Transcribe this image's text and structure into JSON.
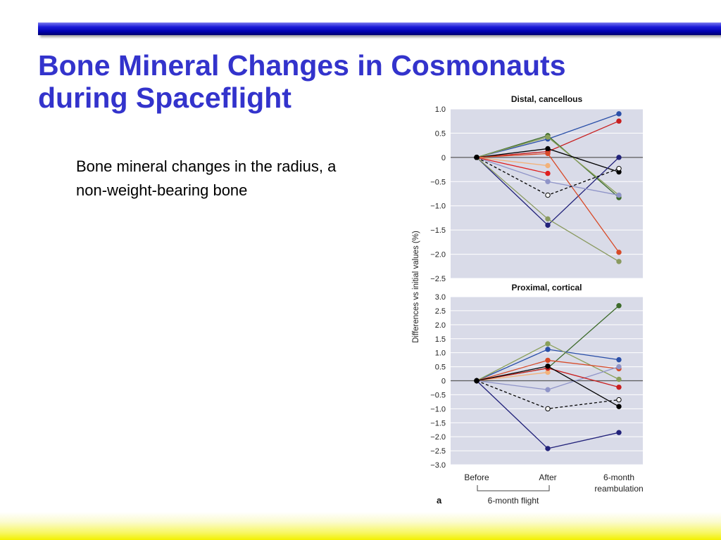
{
  "slide": {
    "title_line1": "Bone Mineral Changes in Cosmonauts",
    "title_line2": "during Spaceflight",
    "body": "Bone mineral changes in the radius, a non-weight-bearing bone"
  },
  "colors": {
    "top_bar": "#0000b0",
    "title": "#3333cc",
    "panel_bg": "#d9dbe8",
    "bottom_bar": "#f2f000"
  },
  "chart_data": {
    "type": "line",
    "ylabel": "Differences vs initial values (%)",
    "categories": [
      "Before",
      "After",
      "6-month reambulation"
    ],
    "category_labels": [
      [
        "Before"
      ],
      [
        "After"
      ],
      [
        "6-month",
        "reambulation"
      ]
    ],
    "bracket_label": "6-month flight",
    "panel_letter": "a",
    "grid": true,
    "panels": [
      {
        "title": "Distal, cancellous",
        "ylim": [
          -2.5,
          1.0
        ],
        "yticks": [
          1.0,
          0.5,
          0,
          -0.5,
          -1.0,
          -1.5,
          -2.0,
          -2.5
        ],
        "ytick_labels": [
          "1.0",
          "0.5",
          "0",
          "−0.5",
          "−1.0",
          "−1.5",
          "−2.0",
          "−2.5"
        ],
        "series": [
          {
            "color": "#2a4fa8",
            "values": [
              0,
              0.38,
              0.9
            ]
          },
          {
            "color": "#c81e1e",
            "values": [
              0,
              0.12,
              0.75
            ]
          },
          {
            "color": "#3d6b2b",
            "values": [
              0,
              0.45,
              -0.83
            ]
          },
          {
            "color": "#8aa05a",
            "values": [
              0,
              0.42,
              -0.78
            ]
          },
          {
            "color": "#000000",
            "values": [
              0,
              0.18,
              -0.3
            ]
          },
          {
            "color": "#22227a",
            "values": [
              0,
              -1.4,
              0.0
            ]
          },
          {
            "color": "#d84a28",
            "values": [
              0,
              0.08,
              -1.96
            ]
          },
          {
            "color": "#8a9a60",
            "values": [
              0,
              -1.27,
              -2.15
            ]
          },
          {
            "color": "#8f94c8",
            "values": [
              0,
              -0.5,
              -0.78
            ]
          },
          {
            "color": "#f2b27a",
            "values": [
              0,
              -0.17,
              null
            ]
          },
          {
            "color": "#e02020",
            "values": [
              0,
              -0.33,
              null
            ]
          },
          {
            "color": "#000000",
            "dashed": true,
            "open_markers": true,
            "values": [
              0,
              -0.78,
              -0.23
            ]
          }
        ]
      },
      {
        "title": "Proximal, cortical",
        "ylim": [
          -3.0,
          3.0
        ],
        "yticks": [
          3.0,
          2.5,
          2.0,
          1.5,
          1.0,
          0.5,
          0,
          -0.5,
          -1.0,
          -1.5,
          -2.0,
          -2.5,
          -3.0
        ],
        "ytick_labels": [
          "3.0",
          "2.5",
          "2.0",
          "1.5",
          "1.0",
          "0.5",
          "0",
          "−0.5",
          "−1.0",
          "−1.5",
          "−2.0",
          "−2.5",
          "−3.0"
        ],
        "series": [
          {
            "color": "#3d6b2b",
            "values": [
              0,
              0.45,
              2.68
            ]
          },
          {
            "color": "#2a4fa8",
            "values": [
              0,
              1.12,
              0.75
            ]
          },
          {
            "color": "#8aa05a",
            "values": [
              0,
              1.32,
              0.05
            ]
          },
          {
            "color": "#d84a28",
            "values": [
              0,
              0.73,
              0.43
            ]
          },
          {
            "color": "#8f94c8",
            "values": [
              0,
              -0.32,
              0.5
            ]
          },
          {
            "color": "#f2b27a",
            "values": [
              0,
              0.3,
              null
            ]
          },
          {
            "color": "#c81e1e",
            "values": [
              0,
              0.45,
              -0.23
            ]
          },
          {
            "color": "#000000",
            "values": [
              0,
              0.52,
              -0.92
            ]
          },
          {
            "color": "#22227a",
            "values": [
              0,
              -2.42,
              -1.85
            ]
          },
          {
            "color": "#000000",
            "dashed": true,
            "open_markers": true,
            "values": [
              0,
              -1.0,
              -0.68
            ]
          }
        ]
      }
    ]
  }
}
